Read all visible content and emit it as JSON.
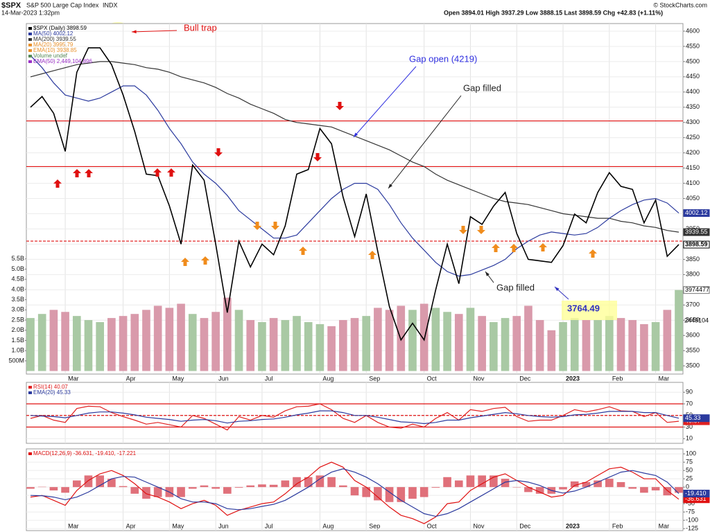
{
  "header": {
    "symbol": "$SPX",
    "name": "S&P 500 Large Cap Index",
    "exchange": "INDX",
    "timestamp": "14-Mar-2023 1:32pm",
    "quote": "Open 3894.01   High 3937.29   Low 3888.15   Last 3898.59   Chg +42.83 (+1.11%)",
    "credit": "© StockCharts.com"
  },
  "chart_data": [
    {
      "type": "line",
      "categories": [
        null,
        null,
        null,
        "Mar",
        null,
        null,
        null,
        null,
        "Apr",
        null,
        null,
        null,
        "May",
        null,
        null,
        null,
        "Jun",
        null,
        null,
        null,
        "Jul",
        null,
        null,
        null,
        null,
        "Aug",
        null,
        null,
        null,
        "Sep",
        null,
        null,
        null,
        null,
        "Oct",
        null,
        null,
        null,
        "Nov",
        null,
        null,
        null,
        "Dec",
        null,
        null,
        null,
        "2023",
        null,
        null,
        null,
        "Feb",
        null,
        null,
        null,
        "Mar",
        null,
        null
      ],
      "month_labels": true,
      "ylim": [
        3473,
        4625
      ],
      "yticks": [
        3500,
        3550,
        3600,
        3650,
        3700,
        3750,
        3800,
        3850,
        3900,
        3950,
        4000,
        4050,
        4100,
        4150,
        4200,
        4250,
        4300,
        4350,
        4400,
        4450,
        4500,
        4550,
        4600
      ],
      "y2lim": [
        -150000000,
        17050000000
      ],
      "y2ticks": [
        {
          "value": 500000000,
          "label": "500M"
        },
        {
          "value": 1000000000,
          "label": "1.0B"
        },
        {
          "value": 1500000000,
          "label": "1.5B"
        },
        {
          "value": 2000000000,
          "label": "2.0B"
        },
        {
          "value": 2500000000,
          "label": "2.5B"
        },
        {
          "value": 3000000000,
          "label": "3.0B"
        },
        {
          "value": 3500000000,
          "label": "3.5B"
        },
        {
          "value": 4000000000,
          "label": "4.0B"
        },
        {
          "value": 4500000000,
          "label": "4.5B"
        },
        {
          "value": 5000000000,
          "label": "5.0B"
        },
        {
          "value": 5500000000,
          "label": "5.5B"
        }
      ],
      "grid": true,
      "volume_colors": {
        "up": "#a9c9a4",
        "down": "#d99aab"
      },
      "series": [
        {
          "name": "Volume",
          "type": "bar",
          "axis": "y2",
          "tag_label": "3974477",
          "color": "#777777",
          "values": [
            2600000000,
            2800000000,
            3000000000,
            2900000000,
            2700000000,
            2500000000,
            2400000000,
            2600000000,
            2700000000,
            2800000000,
            3000000000,
            3200000000,
            3100000000,
            3300000000,
            2800000000,
            2600000000,
            2900000000,
            3600000000,
            3000000000,
            2500000000,
            2400000000,
            2600000000,
            2500000000,
            2700000000,
            2400000000,
            2300000000,
            2200000000,
            2500000000,
            2600000000,
            2700000000,
            3100000000,
            3000000000,
            3200000000,
            3000000000,
            3300000000,
            3100000000,
            2900000000,
            2800000000,
            3100000000,
            2700000000,
            2400000000,
            2600000000,
            2700000000,
            3200000000,
            2500000000,
            2000000000,
            2400000000,
            2600000000,
            2500000000,
            2500000000,
            2700000000,
            2600000000,
            2500000000,
            2300000000,
            2400000000,
            3000000000,
            3974477000
          ]
        },
        {
          "name": "MA(200)",
          "color": "#333333",
          "tag": true,
          "values": [
            4450,
            4460,
            4470,
            4480,
            4490,
            4495,
            4500,
            4500,
            4495,
            4490,
            4480,
            4475,
            4465,
            4450,
            4440,
            4430,
            4415,
            4395,
            4380,
            4360,
            4345,
            4330,
            4310,
            4300,
            4295,
            4290,
            4285,
            4270,
            4255,
            4240,
            4225,
            4210,
            4190,
            4170,
            4155,
            4130,
            4110,
            4095,
            4080,
            4065,
            4050,
            4040,
            4035,
            4030,
            4020,
            4010,
            4000,
            3995,
            3990,
            3985,
            3985,
            3975,
            3970,
            3960,
            3955,
            3945,
            3939.55
          ]
        },
        {
          "name": "MA(50)",
          "color": "#2b3a9e",
          "tag": true,
          "values": [
            4520,
            4480,
            4430,
            4390,
            4380,
            4370,
            4380,
            4400,
            4420,
            4420,
            4390,
            4340,
            4280,
            4230,
            4170,
            4130,
            4100,
            4060,
            4010,
            3980,
            3950,
            3920,
            3920,
            3930,
            3970,
            4010,
            4050,
            4080,
            4100,
            4100,
            4080,
            4030,
            3970,
            3920,
            3880,
            3840,
            3810,
            3795,
            3800,
            3815,
            3830,
            3850,
            3885,
            3910,
            3930,
            3940,
            3935,
            3930,
            3935,
            3955,
            3985,
            4010,
            4030,
            4045,
            4050,
            4035,
            4002.12
          ]
        },
        {
          "name": "$SPX",
          "color": "#000000",
          "tag": true,
          "up_reference": true,
          "values": [
            4350,
            4385,
            4330,
            4205,
            4465,
            4545,
            4545,
            4490,
            4390,
            4270,
            4130,
            4125,
            4025,
            3900,
            4160,
            4110,
            3900,
            3675,
            3910,
            3825,
            3900,
            3865,
            3960,
            4130,
            4145,
            4280,
            4230,
            4055,
            3925,
            4065,
            3875,
            3695,
            3585,
            3640,
            3585,
            3750,
            3900,
            3770,
            3990,
            3965,
            4025,
            4070,
            3935,
            3850,
            3845,
            3840,
            3895,
            3999,
            3970,
            4070,
            4135,
            4090,
            4080,
            3970,
            4045,
            3860,
            3898.59
          ]
        }
      ],
      "reference_lines": [
        {
          "value": 4305,
          "color": "#e01010",
          "dash": false
        },
        {
          "value": 4155,
          "color": "#e01010",
          "dash": false
        },
        {
          "value": 3910,
          "color": "#e01010",
          "dash": true
        }
      ],
      "legend": [
        "$SPX (Daily) 3898.59",
        "MA(50) 4002.12",
        "MA(200) 3939.55",
        "MA(20) 3995.79",
        "EMA(10) 3938.85",
        "Volume undef",
        "EMA(50) 2,449,104,896"
      ],
      "legend_colors": [
        "#000000",
        "#2b3a9e",
        "#333333",
        "#e8902a",
        "#e8902a",
        "#558855",
        "#9b30c8"
      ],
      "annotations": [
        "Bull trap",
        "Gap open (4219)",
        "Gap filled",
        "Gap filled",
        "3764.49",
        "2449104"
      ]
    },
    {
      "type": "line",
      "ylim": [
        2,
        107
      ],
      "yticks": [
        10,
        30,
        50,
        70,
        90
      ],
      "series": [
        {
          "name": "RSI(14)",
          "color": "#e02020",
          "tag": true,
          "values": [
            45,
            50,
            42,
            38,
            62,
            66,
            65,
            55,
            48,
            42,
            35,
            38,
            34,
            30,
            50,
            45,
            35,
            25,
            48,
            42,
            50,
            47,
            58,
            65,
            66,
            70,
            60,
            45,
            38,
            50,
            38,
            30,
            28,
            35,
            30,
            45,
            55,
            42,
            60,
            57,
            62,
            64,
            48,
            40,
            42,
            42,
            50,
            60,
            56,
            60,
            65,
            58,
            57,
            48,
            55,
            38,
            40.07
          ]
        },
        {
          "name": "EMA(20)",
          "color": "#2b3a9e",
          "tag": true,
          "values": [
            50,
            49,
            48,
            46,
            50,
            54,
            56,
            56,
            54,
            51,
            47,
            45,
            43,
            40,
            42,
            43,
            41,
            37,
            40,
            41,
            43,
            44,
            47,
            51,
            54,
            58,
            58,
            55,
            50,
            50,
            47,
            43,
            39,
            38,
            36,
            38,
            42,
            42,
            46,
            49,
            52,
            55,
            53,
            50,
            48,
            47,
            48,
            51,
            52,
            54,
            57,
            57,
            57,
            55,
            55,
            50,
            45.33
          ]
        }
      ],
      "reference_lines": [
        {
          "value": 70,
          "color": "#e01010",
          "dash": false
        },
        {
          "value": 50,
          "color": "#e01010",
          "dash": true
        },
        {
          "value": 30,
          "color": "#e01010",
          "dash": false
        }
      ],
      "legend": [
        "RSI(14) 40.07",
        "EMA(20) 45.33"
      ],
      "legend_colors": [
        "#e02020",
        "#2b3a9e"
      ]
    },
    {
      "type": "line",
      "month_labels": true,
      "ylim": [
        -131,
        115
      ],
      "yticks": [
        -125,
        -100,
        -75,
        -50,
        -25,
        0,
        25,
        50,
        75,
        100
      ],
      "series": [
        {
          "name": "Histogram",
          "type": "histogram",
          "color": "#e0707a",
          "values": [
            -5,
            1,
            -10,
            -17,
            20,
            35,
            35,
            25,
            3,
            -20,
            -35,
            -30,
            -30,
            -30,
            -5,
            5,
            -5,
            -20,
            -2,
            5,
            8,
            7,
            20,
            30,
            30,
            35,
            30,
            5,
            -25,
            -30,
            -40,
            -45,
            -45,
            -35,
            -30,
            -2,
            30,
            20,
            35,
            35,
            35,
            25,
            0,
            -15,
            -20,
            -20,
            -7,
            17,
            15,
            20,
            25,
            15,
            -5,
            -17,
            -10,
            -25,
            -17.221
          ]
        },
        {
          "name": "MACD",
          "color": "#e01010",
          "tag_label": "-36.631",
          "values": [
            -30,
            -25,
            -40,
            -55,
            -10,
            20,
            40,
            50,
            35,
            10,
            -20,
            -30,
            -45,
            -65,
            -50,
            -40,
            -55,
            -85,
            -70,
            -60,
            -50,
            -45,
            -20,
            10,
            30,
            60,
            75,
            60,
            20,
            0,
            -30,
            -60,
            -85,
            -95,
            -110,
            -90,
            -50,
            -45,
            -10,
            10,
            30,
            40,
            20,
            0,
            -15,
            -30,
            -25,
            5,
            15,
            35,
            55,
            60,
            45,
            25,
            25,
            -10,
            -36.631
          ]
        },
        {
          "name": "Signal",
          "color": "#2b3a9e",
          "tag_label": "-19.410",
          "values": [
            -25,
            -26,
            -30,
            -38,
            -30,
            -15,
            5,
            25,
            32,
            30,
            15,
            0,
            -15,
            -35,
            -45,
            -45,
            -50,
            -65,
            -68,
            -65,
            -58,
            -52,
            -40,
            -20,
            0,
            25,
            45,
            55,
            45,
            30,
            10,
            -15,
            -40,
            -60,
            -80,
            -88,
            -80,
            -65,
            -45,
            -25,
            -5,
            15,
            20,
            15,
            5,
            -10,
            -18,
            -12,
            0,
            15,
            30,
            45,
            50,
            42,
            35,
            15,
            -19.41
          ]
        }
      ],
      "legend": [
        "MACD(12,26,9) -36.631, -19.410, -17.221"
      ],
      "legend_colors": [
        "#e01010"
      ]
    }
  ]
}
